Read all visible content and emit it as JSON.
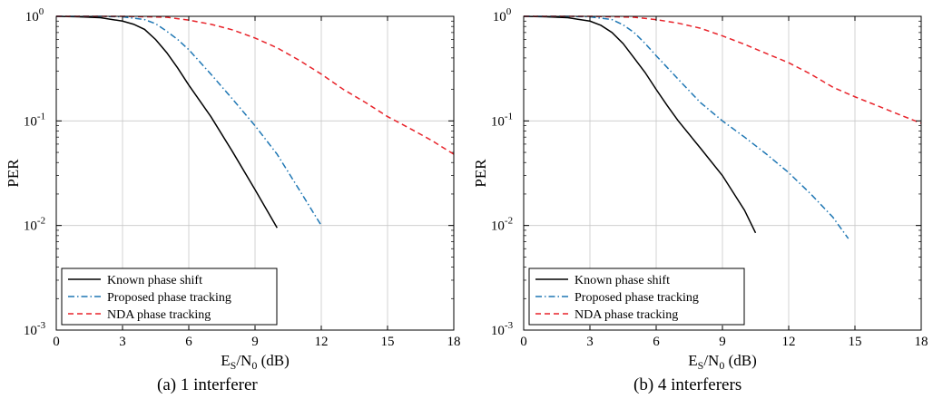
{
  "chart_data": [
    {
      "type": "line",
      "caption": "(a) 1 interferer",
      "xlabel": "E_S/N_0 (dB)",
      "ylabel": "PER",
      "xlim": [
        0,
        18
      ],
      "ylim": [
        0.001,
        1
      ],
      "yscale": "log",
      "grid": true,
      "legend_position": "bottom-left",
      "xticks": [
        "0",
        "3",
        "6",
        "9",
        "12",
        "15",
        "18"
      ],
      "series": [
        {
          "name": "Known phase shift",
          "color": "#000000",
          "dash": "solid",
          "x": [
            0,
            1,
            2,
            3,
            3.5,
            4,
            4.5,
            5,
            5.5,
            6,
            7,
            8,
            9,
            10
          ],
          "y": [
            1.0,
            0.99,
            0.97,
            0.9,
            0.84,
            0.75,
            0.6,
            0.45,
            0.32,
            0.22,
            0.11,
            0.05,
            0.022,
            0.0095
          ]
        },
        {
          "name": "Proposed phase tracking",
          "color": "#1f77b4",
          "dash": "dashdot",
          "x": [
            0,
            2,
            3,
            4,
            4.5,
            5,
            5.5,
            6,
            7,
            8,
            9,
            10,
            11,
            12
          ],
          "y": [
            1.0,
            1.0,
            0.99,
            0.93,
            0.85,
            0.72,
            0.6,
            0.48,
            0.28,
            0.16,
            0.09,
            0.048,
            0.022,
            0.01
          ]
        },
        {
          "name": "NDA phase tracking",
          "color": "#e8232a",
          "dash": "dashed",
          "x": [
            0,
            3,
            5,
            6,
            7,
            8,
            9,
            10,
            11,
            12,
            13,
            14,
            15,
            16,
            17,
            18
          ],
          "y": [
            1.0,
            1.0,
            0.98,
            0.92,
            0.84,
            0.74,
            0.62,
            0.5,
            0.38,
            0.28,
            0.2,
            0.15,
            0.11,
            0.085,
            0.065,
            0.048
          ]
        }
      ]
    },
    {
      "type": "line",
      "caption": "(b) 4 interferers",
      "xlabel": "E_S/N_0 (dB)",
      "ylabel": "PER",
      "xlim": [
        0,
        18
      ],
      "ylim": [
        0.001,
        1
      ],
      "yscale": "log",
      "grid": true,
      "legend_position": "bottom-left",
      "xticks": [
        "0",
        "3",
        "6",
        "9",
        "12",
        "15",
        "18"
      ],
      "series": [
        {
          "name": "Known phase shift",
          "color": "#000000",
          "dash": "solid",
          "x": [
            0,
            1,
            2,
            3,
            3.5,
            4,
            4.5,
            5,
            5.5,
            6,
            6.5,
            7,
            8,
            9,
            10,
            10.5
          ],
          "y": [
            1.0,
            0.99,
            0.97,
            0.9,
            0.82,
            0.7,
            0.55,
            0.4,
            0.29,
            0.2,
            0.14,
            0.1,
            0.055,
            0.03,
            0.014,
            0.0085
          ]
        },
        {
          "name": "Proposed phase tracking",
          "color": "#1f77b4",
          "dash": "dashdot",
          "x": [
            0,
            2,
            3,
            4,
            4.5,
            5,
            5.5,
            6,
            7,
            8,
            9,
            10,
            11,
            12,
            13,
            14,
            14.7
          ],
          "y": [
            1.0,
            1.0,
            0.99,
            0.93,
            0.83,
            0.7,
            0.55,
            0.42,
            0.25,
            0.15,
            0.1,
            0.07,
            0.048,
            0.032,
            0.02,
            0.012,
            0.0075
          ]
        },
        {
          "name": "NDA phase tracking",
          "color": "#e8232a",
          "dash": "dashed",
          "x": [
            0,
            3,
            5,
            6,
            7,
            8,
            9,
            10,
            11,
            12,
            13,
            14,
            15,
            16,
            17,
            18
          ],
          "y": [
            1.0,
            1.0,
            0.98,
            0.93,
            0.86,
            0.77,
            0.65,
            0.54,
            0.44,
            0.36,
            0.28,
            0.21,
            0.17,
            0.14,
            0.115,
            0.095
          ]
        }
      ]
    }
  ]
}
